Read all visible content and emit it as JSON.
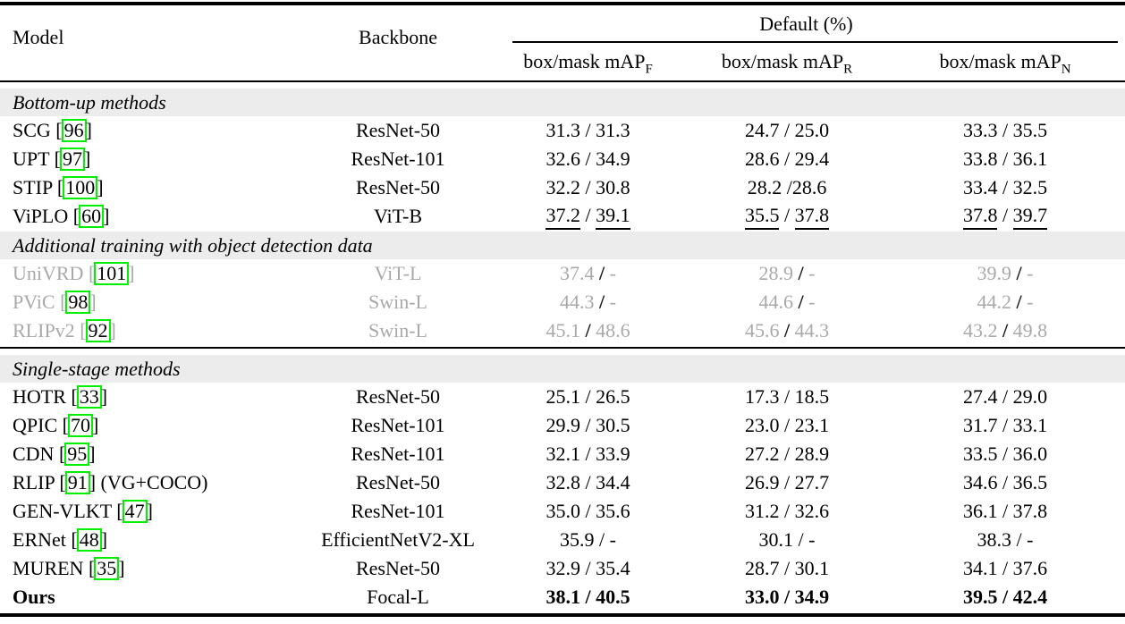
{
  "colors": {
    "highlight_green": "#00f000",
    "muted_text": "#a9a9a9",
    "band_bg": "#ececec"
  },
  "header": {
    "model": "Model",
    "backbone": "Backbone",
    "group": "Default (%)",
    "subcols": [
      {
        "label": "box/mask mAP",
        "sub": "F"
      },
      {
        "label": "box/mask mAP",
        "sub": "R"
      },
      {
        "label": "box/mask mAP",
        "sub": "N"
      }
    ]
  },
  "sections": [
    {
      "title": "Bottom-up methods",
      "rows": [
        {
          "model": "SCG",
          "cite": "96",
          "suffix": "",
          "backbone": "ResNet-50",
          "cells": [
            [
              "31.3",
              "31.3"
            ],
            [
              "24.7",
              "25.0"
            ],
            [
              "33.3",
              "35.5"
            ]
          ],
          "seps": [
            " / ",
            " / ",
            " / "
          ],
          "style": "normal"
        },
        {
          "model": "UPT",
          "cite": "97",
          "suffix": "",
          "backbone": "ResNet-101",
          "cells": [
            [
              "32.6",
              "34.9"
            ],
            [
              "28.6",
              "29.4"
            ],
            [
              "33.8",
              "36.1"
            ]
          ],
          "seps": [
            " / ",
            " / ",
            " / "
          ],
          "style": "normal"
        },
        {
          "model": "STIP",
          "cite": "100",
          "suffix": "",
          "backbone": "ResNet-50",
          "cells": [
            [
              "32.2",
              "30.8"
            ],
            [
              "28.2",
              "28.6"
            ],
            [
              "33.4",
              "32.5"
            ]
          ],
          "seps": [
            " / ",
            " /",
            " / "
          ],
          "style": "normal"
        },
        {
          "model": "ViPLO",
          "cite": "60",
          "suffix": "",
          "backbone": "ViT-B",
          "cells": [
            [
              "37.2",
              "39.1"
            ],
            [
              "35.5",
              "37.8"
            ],
            [
              "37.8",
              "39.7"
            ]
          ],
          "seps": [
            " / ",
            " / ",
            " / "
          ],
          "style": "underline"
        }
      ]
    },
    {
      "title": "Additional training with object detection data",
      "rows": [
        {
          "model": "UniVRD",
          "cite": "101",
          "suffix": "",
          "backbone": "ViT-L",
          "cells": [
            [
              "37.4",
              "-"
            ],
            [
              "28.9",
              "-"
            ],
            [
              "39.9",
              "-"
            ]
          ],
          "seps": [
            " / ",
            " / ",
            " / "
          ],
          "style": "gray"
        },
        {
          "model": "PViC",
          "cite": "98",
          "suffix": "",
          "backbone": "Swin-L",
          "cells": [
            [
              "44.3",
              "-"
            ],
            [
              "44.6",
              "-"
            ],
            [
              "44.2",
              "-"
            ]
          ],
          "seps": [
            " / ",
            " / ",
            " / "
          ],
          "style": "gray"
        },
        {
          "model": "RLIPv2",
          "cite": "92",
          "suffix": "",
          "backbone": "Swin-L",
          "cells": [
            [
              "45.1",
              "48.6"
            ],
            [
              "45.6",
              "44.3"
            ],
            [
              "43.2",
              "49.8"
            ]
          ],
          "seps": [
            " / ",
            " / ",
            " / "
          ],
          "style": "gray"
        }
      ]
    },
    {
      "title": "Single-stage methods",
      "rows": [
        {
          "model": "HOTR",
          "cite": "33",
          "suffix": "",
          "backbone": "ResNet-50",
          "cells": [
            [
              "25.1",
              "26.5"
            ],
            [
              "17.3",
              "18.5"
            ],
            [
              "27.4",
              "29.0"
            ]
          ],
          "seps": [
            " / ",
            " / ",
            " / "
          ],
          "style": "normal"
        },
        {
          "model": "QPIC",
          "cite": "70",
          "suffix": "",
          "backbone": "ResNet-101",
          "cells": [
            [
              "29.9",
              "30.5"
            ],
            [
              "23.0",
              "23.1"
            ],
            [
              "31.7",
              "33.1"
            ]
          ],
          "seps": [
            " / ",
            " / ",
            " / "
          ],
          "style": "normal"
        },
        {
          "model": "CDN",
          "cite": "95",
          "suffix": "",
          "backbone": "ResNet-101",
          "cells": [
            [
              "32.1",
              "33.9"
            ],
            [
              "27.2",
              "28.9"
            ],
            [
              "33.5",
              "36.0"
            ]
          ],
          "seps": [
            " / ",
            " / ",
            " / "
          ],
          "style": "normal"
        },
        {
          "model": "RLIP",
          "cite": "91",
          "suffix": " (VG+COCO)",
          "backbone": "ResNet-50",
          "cells": [
            [
              "32.8",
              "34.4"
            ],
            [
              "26.9",
              "27.7"
            ],
            [
              "34.6",
              "36.5"
            ]
          ],
          "seps": [
            " / ",
            " / ",
            " / "
          ],
          "style": "normal"
        },
        {
          "model": "GEN-VLKT",
          "cite": "47",
          "suffix": "",
          "backbone": "ResNet-101",
          "cells": [
            [
              "35.0",
              "35.6"
            ],
            [
              "31.2",
              "32.6"
            ],
            [
              "36.1",
              "37.8"
            ]
          ],
          "seps": [
            " / ",
            " / ",
            " / "
          ],
          "style": "normal"
        },
        {
          "model": "ERNet",
          "cite": "48",
          "suffix": "",
          "backbone": "EfficientNetV2-XL",
          "cells": [
            [
              "35.9",
              "-"
            ],
            [
              "30.1",
              "-"
            ],
            [
              "38.3",
              "-"
            ]
          ],
          "seps": [
            " / ",
            " / ",
            " / "
          ],
          "style": "normal"
        },
        {
          "model": "MUREN",
          "cite": "35",
          "suffix": "",
          "backbone": "ResNet-50",
          "cells": [
            [
              "32.9",
              "35.4"
            ],
            [
              "28.7",
              "30.1"
            ],
            [
              "34.1",
              "37.6"
            ]
          ],
          "seps": [
            " / ",
            " / ",
            " / "
          ],
          "style": "normal"
        },
        {
          "model": "Ours",
          "cite": null,
          "suffix": "",
          "backbone": "Focal-L",
          "cells": [
            [
              "38.1",
              "40.5"
            ],
            [
              "33.0",
              "34.9"
            ],
            [
              "39.5",
              "42.4"
            ]
          ],
          "seps": [
            " / ",
            " / ",
            " / "
          ],
          "style": "bold"
        }
      ]
    }
  ]
}
